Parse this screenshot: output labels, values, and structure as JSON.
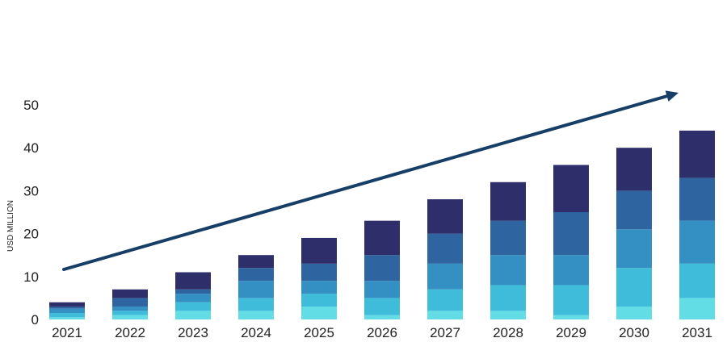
{
  "chart_data": {
    "type": "bar",
    "stacked": true,
    "title": "",
    "xlabel": "",
    "ylabel": "USD MILLION",
    "categories": [
      "2021",
      "2022",
      "2023",
      "2024",
      "2025",
      "2026",
      "2027",
      "2028",
      "2029",
      "2030",
      "2031"
    ],
    "ylim": [
      0,
      50
    ],
    "yticks": [
      0,
      10,
      20,
      30,
      40,
      50
    ],
    "grid": false,
    "legend": "none",
    "trend_arrow": true,
    "series": [
      {
        "color": "#62dde6",
        "values": [
          0.5,
          1,
          2,
          2,
          3,
          1,
          2,
          2,
          1,
          3,
          5
        ]
      },
      {
        "color": "#3fbcd9",
        "values": [
          1,
          1,
          2,
          3,
          3,
          4,
          5,
          6,
          7,
          9,
          8
        ]
      },
      {
        "color": "#3490c2",
        "values": [
          1,
          1,
          2,
          4,
          3,
          4,
          6,
          7,
          7,
          9,
          10
        ]
      },
      {
        "color": "#2e64a0",
        "values": [
          0.5,
          2,
          1,
          3,
          4,
          6,
          7,
          8,
          10,
          9,
          10
        ]
      },
      {
        "color": "#2e2e6b",
        "values": [
          1,
          2,
          4,
          3,
          6,
          8,
          8,
          9,
          11,
          10,
          11
        ]
      }
    ],
    "axis_color": "#222222",
    "arrow_color": "#163e66"
  }
}
